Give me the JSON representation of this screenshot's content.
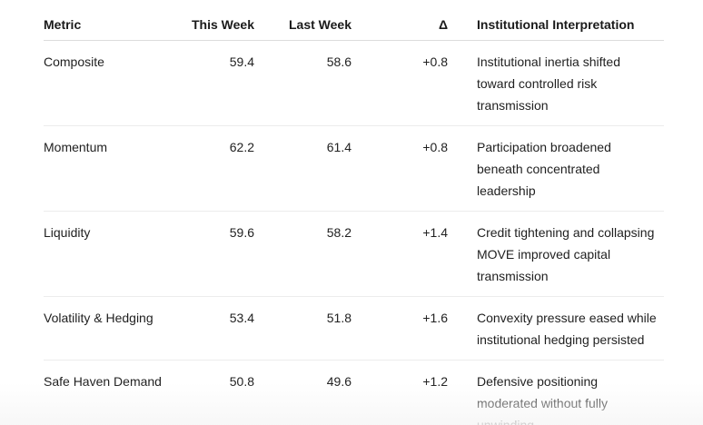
{
  "table": {
    "headers": {
      "metric": "Metric",
      "this_week": "This Week",
      "last_week": "Last Week",
      "delta": "Δ",
      "interpretation": "Institutional Interpretation"
    },
    "rows": [
      {
        "metric": "Composite",
        "this_week": "59.4",
        "last_week": "58.6",
        "delta": "+0.8",
        "interpretation": "Institutional inertia shifted toward controlled risk transmission"
      },
      {
        "metric": "Momentum",
        "this_week": "62.2",
        "last_week": "61.4",
        "delta": "+0.8",
        "interpretation": "Participation broadened beneath concentrated leadership"
      },
      {
        "metric": "Liquidity",
        "this_week": "59.6",
        "last_week": "58.2",
        "delta": "+1.4",
        "interpretation": "Credit tightening and collapsing MOVE improved capital transmission"
      },
      {
        "metric": "Volatility & Hedging",
        "this_week": "53.4",
        "last_week": "51.8",
        "delta": "+1.6",
        "interpretation": "Convexity pressure eased while institutional hedging persisted"
      },
      {
        "metric": "Safe Haven Demand",
        "this_week": "50.8",
        "last_week": "49.6",
        "delta": "+1.2",
        "interpretation": "Defensive positioning moderated without fully unwinding"
      }
    ]
  }
}
